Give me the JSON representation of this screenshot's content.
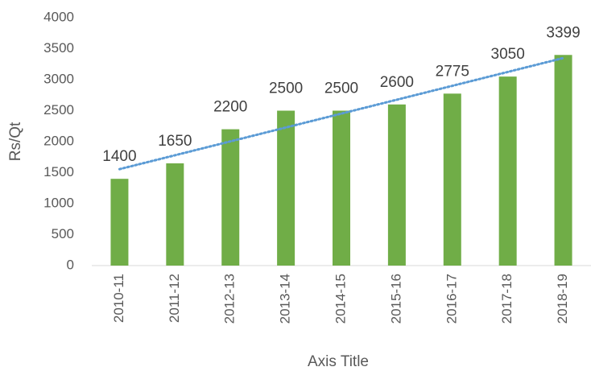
{
  "chart_data": {
    "type": "bar",
    "categories": [
      "2010-11",
      "2011-12",
      "2012-13",
      "2013-14",
      "2014-15",
      "2015-16",
      "2016-17",
      "2017-18",
      "2018-19"
    ],
    "values": [
      1400,
      1650,
      2200,
      2500,
      2500,
      2600,
      2775,
      3050,
      3399
    ],
    "color": "#70ad47",
    "ylim": [
      0,
      4000
    ],
    "yticks": [
      0,
      500,
      1000,
      1500,
      2000,
      2500,
      3000,
      3500,
      4000
    ],
    "y_label": "Rs/Qt",
    "x_label": "Axis Title",
    "grid": false,
    "data_labels": true,
    "trendline": "linear",
    "trendline_color": "#5b9bd5"
  }
}
